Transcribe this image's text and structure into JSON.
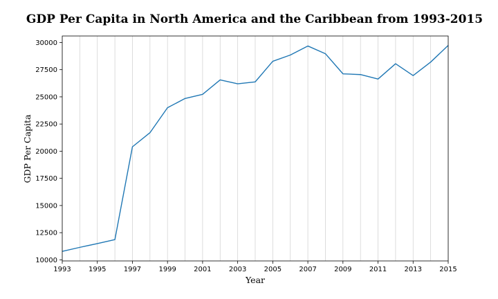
{
  "chart_data": {
    "type": "line",
    "title": "GDP Per Capita in North America and the Caribbean from 1993-2015",
    "xlabel": "Year",
    "ylabel": "GDP Per Capita",
    "xlim": [
      1993,
      2015
    ],
    "ylim": [
      9900,
      30600
    ],
    "xticks": [
      1993,
      1995,
      1997,
      1999,
      2001,
      2003,
      2005,
      2007,
      2009,
      2011,
      2013,
      2015
    ],
    "yticks": [
      10000,
      12500,
      15000,
      17500,
      20000,
      22500,
      25000,
      27500,
      30000
    ],
    "grid": "vertical-yearly",
    "legend": "none",
    "color": "#1f77b4",
    "series": [
      {
        "x": [
          1993,
          1994,
          1995,
          1996,
          1997,
          1998,
          1999,
          2000,
          2001,
          2002,
          2003,
          2004,
          2005,
          2006,
          2007,
          2008,
          2009,
          2010,
          2011,
          2012,
          2013,
          2014,
          2015
        ],
        "values": [
          10780,
          11150,
          11500,
          11860,
          20400,
          21700,
          24000,
          24850,
          25230,
          26560,
          26200,
          26380,
          28270,
          28850,
          29680,
          28970,
          27120,
          27050,
          26640,
          28050,
          26960,
          28200,
          29730
        ]
      }
    ]
  }
}
